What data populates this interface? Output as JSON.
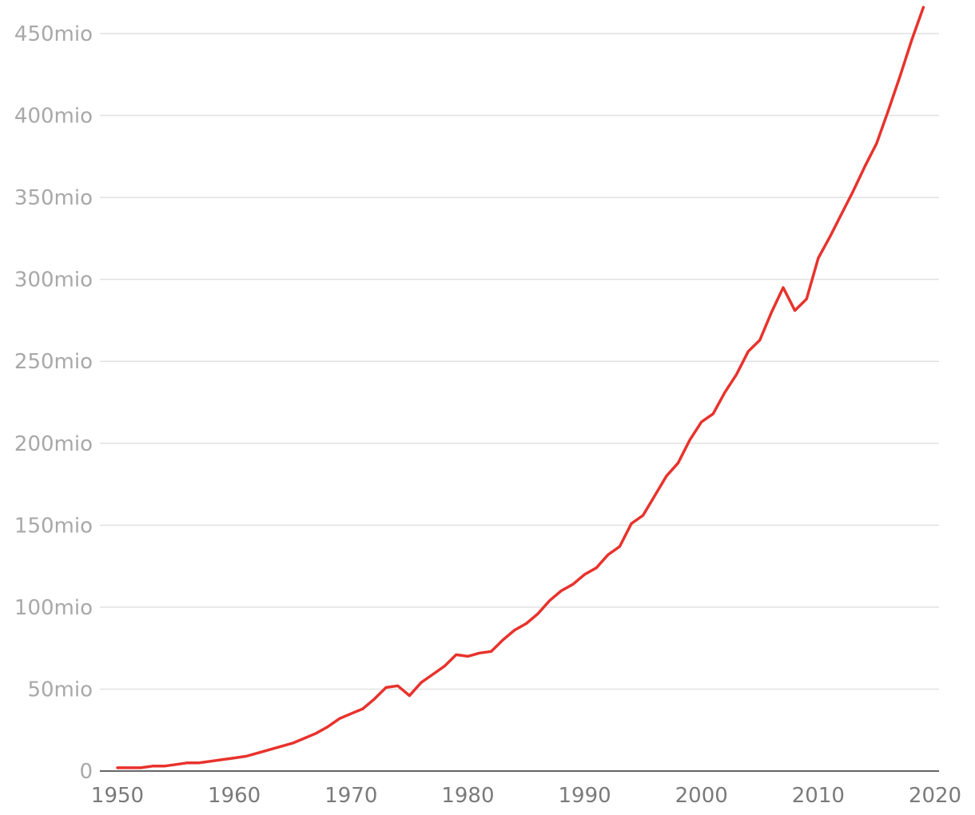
{
  "chart_data": {
    "type": "line",
    "title": "",
    "xlabel": "",
    "ylabel": "",
    "xlim": [
      1950,
      2020
    ],
    "ylim": [
      0,
      450
    ],
    "x_ticks": [
      1950,
      1960,
      1970,
      1980,
      1990,
      2000,
      2010,
      2020
    ],
    "x_tick_labels": [
      "1950",
      "1960",
      "1970",
      "1980",
      "1990",
      "2000",
      "2010",
      "2020"
    ],
    "y_ticks": [
      0,
      50,
      100,
      150,
      200,
      250,
      300,
      350,
      400,
      450
    ],
    "y_tick_labels": [
      "0",
      "50mio",
      "100mio",
      "150mio",
      "200mio",
      "250mio",
      "300mio",
      "350mio",
      "400mio",
      "450mio"
    ],
    "grid": true,
    "legend": "none",
    "line_color": "#e8322c",
    "series": [
      {
        "x": [
          1950,
          1951,
          1952,
          1953,
          1954,
          1955,
          1956,
          1957,
          1958,
          1959,
          1960,
          1961,
          1962,
          1963,
          1964,
          1965,
          1966,
          1967,
          1968,
          1969,
          1970,
          1971,
          1972,
          1973,
          1974,
          1975,
          1976,
          1977,
          1978,
          1979,
          1980,
          1981,
          1982,
          1983,
          1984,
          1985,
          1986,
          1987,
          1988,
          1989,
          1990,
          1991,
          1992,
          1993,
          1994,
          1995,
          1996,
          1997,
          1998,
          1999,
          2000,
          2001,
          2002,
          2003,
          2004,
          2005,
          2006,
          2007,
          2008,
          2009,
          2010,
          2011,
          2012,
          2013,
          2014,
          2015,
          2016,
          2017,
          2018,
          2019
        ],
        "values": [
          2,
          2,
          2,
          3,
          3,
          4,
          5,
          5,
          6,
          7,
          8,
          9,
          11,
          13,
          15,
          17,
          20,
          23,
          27,
          32,
          35,
          38,
          44,
          51,
          52,
          46,
          54,
          59,
          64,
          71,
          70,
          72,
          73,
          80,
          86,
          90,
          96,
          104,
          110,
          114,
          120,
          124,
          132,
          137,
          151,
          156,
          168,
          180,
          188,
          202,
          213,
          218,
          231,
          242,
          256,
          263,
          280,
          295,
          281,
          288,
          313,
          326,
          340,
          354,
          369,
          383,
          403,
          424,
          446,
          466
        ]
      }
    ]
  }
}
